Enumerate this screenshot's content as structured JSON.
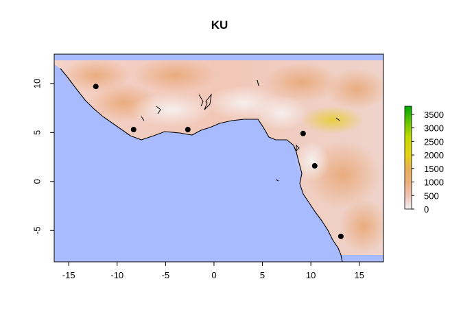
{
  "title": "KU",
  "map": {
    "x_ticks": [
      "-15",
      "-10",
      "-5",
      "0",
      "5",
      "10",
      "15"
    ],
    "y_ticks": [
      "10",
      "5",
      "0",
      "-5"
    ],
    "xlim": [
      -16.5,
      17.5
    ],
    "ylim": [
      -8.2,
      13.0
    ],
    "ocean_color": "#A9BBFF",
    "land_gradient": [
      "#F2F2F2",
      "#EFC7BE",
      "#EBB28C",
      "#E6A65C",
      "#E9CE26",
      "#7FCC00",
      "#00A600"
    ]
  },
  "colorbar": {
    "labels": [
      "3500",
      "3000",
      "2500",
      "2000",
      "1500",
      "1000",
      "500",
      "0"
    ],
    "values": [
      3500,
      3000,
      2500,
      2000,
      1500,
      1000,
      500,
      0
    ],
    "max": 3800
  },
  "points": [
    {
      "lon": -12.2,
      "lat": 9.7
    },
    {
      "lon": -8.3,
      "lat": 5.3
    },
    {
      "lon": -2.7,
      "lat": 5.3
    },
    {
      "lon": 9.2,
      "lat": 4.9
    },
    {
      "lon": 10.4,
      "lat": 1.6
    },
    {
      "lon": 13.1,
      "lat": -5.6
    }
  ]
}
